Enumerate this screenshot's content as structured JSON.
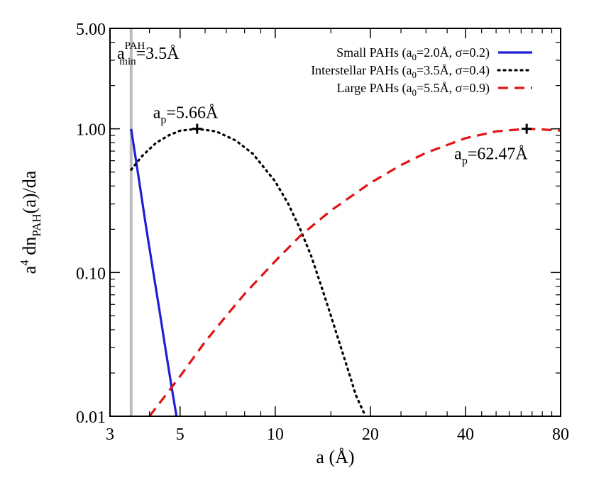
{
  "chart_data": {
    "type": "line",
    "xscale": "log",
    "yscale": "log",
    "xlim": [
      3,
      80
    ],
    "ylim": [
      0.01,
      5.0
    ],
    "xticks": [
      3,
      5,
      10,
      20,
      40,
      80
    ],
    "xtick_labels": [
      "3",
      "5",
      "10",
      "20",
      "40",
      "80"
    ],
    "yticks": [
      0.01,
      0.1,
      1.0,
      5.0
    ],
    "ytick_labels": [
      "0.01",
      "0.10",
      "1.00",
      "5.00"
    ],
    "xlabel": "a (Å)",
    "ylabel": {
      "base": "a",
      "sup": "4",
      "mid": " dn",
      "sub": "PAH",
      "tail": "(a)/da"
    },
    "legend_position": "top-right",
    "amin_line": {
      "x": 3.5,
      "label": {
        "base": "a",
        "sub": "min",
        "sup": "PAH",
        "tail": "=3.5Å"
      },
      "color": "#bbbbbb"
    },
    "series": [
      {
        "label": {
          "pre": "Small PAHs (a",
          "sub": "0",
          "post": "=2.0Å, σ=0.2)"
        },
        "color": "#1f1fd6",
        "dash": "solid",
        "x": [
          3.5,
          3.7,
          3.9,
          4.1,
          4.3,
          4.5,
          4.7,
          4.87
        ],
        "y": [
          1.0,
          0.45,
          0.21,
          0.105,
          0.055,
          0.029,
          0.016,
          0.01
        ]
      },
      {
        "label": {
          "pre": "Interstellar PAHs (a",
          "sub": "0",
          "post": "=3.5Å, σ=0.4)"
        },
        "color": "#000000",
        "dash": "dot",
        "x": [
          3.5,
          3.8,
          4.2,
          4.6,
          5.0,
          5.66,
          6.5,
          7.5,
          8.5,
          10,
          11,
          12,
          13,
          14,
          15,
          16,
          17,
          18,
          19.3
        ],
        "y": [
          0.52,
          0.65,
          0.8,
          0.9,
          0.97,
          1.0,
          0.96,
          0.83,
          0.67,
          0.43,
          0.3,
          0.2,
          0.13,
          0.08,
          0.05,
          0.032,
          0.021,
          0.014,
          0.01
        ]
      },
      {
        "label": {
          "pre": "Large PAHs (a",
          "sub": "0",
          "post": "=5.5Å, σ=0.9)"
        },
        "color": "#e01414",
        "dash": "dash",
        "x": [
          4.0,
          4.5,
          5,
          6,
          7,
          8,
          10,
          12,
          15,
          20,
          25,
          30,
          40,
          50,
          62.47,
          70,
          80
        ],
        "y": [
          0.01,
          0.014,
          0.019,
          0.033,
          0.05,
          0.071,
          0.12,
          0.18,
          0.27,
          0.42,
          0.56,
          0.68,
          0.86,
          0.96,
          1.0,
          0.99,
          0.97
        ]
      }
    ],
    "peaks": [
      {
        "x": 5.66,
        "y": 1.0,
        "label": {
          "base": "a",
          "sub": "p",
          "tail": "=5.66Å"
        },
        "label_side": "above"
      },
      {
        "x": 62.47,
        "y": 1.0,
        "label": {
          "base": "a",
          "sub": "p",
          "tail": "=62.47Å"
        },
        "label_side": "below"
      }
    ]
  }
}
